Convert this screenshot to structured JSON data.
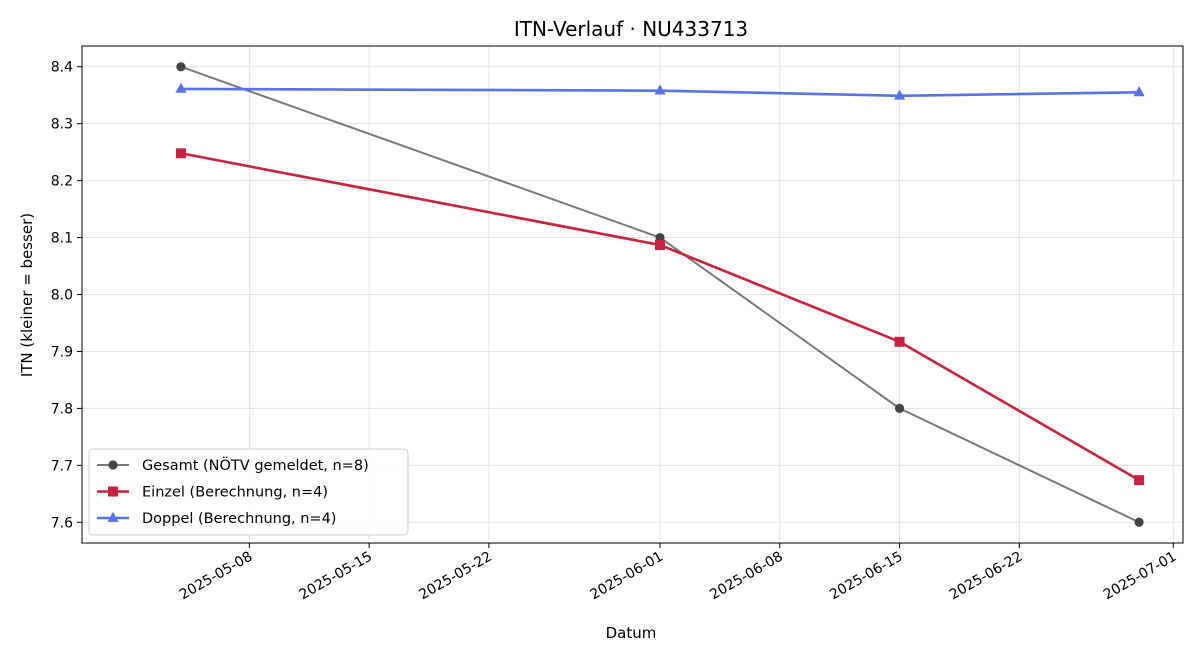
{
  "chart_data": {
    "type": "line",
    "title": "ITN-Verlauf · NU433713",
    "xlabel": "Datum",
    "ylabel": "ITN  (kleiner = besser)",
    "x_type": "date",
    "xlim": [
      "2025-05-01",
      "2025-07-01"
    ],
    "ylim": [
      7.6,
      8.4
    ],
    "x_ticks": [
      "2025-05-08",
      "2025-05-15",
      "2025-05-22",
      "2025-06-01",
      "2025-06-08",
      "2025-06-15",
      "2025-06-22",
      "2025-07-01"
    ],
    "y_ticks": [
      "7.6",
      "7.7",
      "7.8",
      "7.9",
      "8.0",
      "8.1",
      "8.2",
      "8.3",
      "8.4"
    ],
    "grid": true,
    "legend_position": "lower-left",
    "series": [
      {
        "name": "Gesamt (NÖTV gemeldet, n=8)",
        "color": "#444444",
        "marker": "circle",
        "x": [
          "2025-05-04",
          "2025-06-01",
          "2025-06-15",
          "2025-06-29"
        ],
        "y": [
          8.4,
          8.1,
          7.8,
          7.6
        ]
      },
      {
        "name": "Einzel (Berechnung, n=4)",
        "color": "#c8223f",
        "marker": "square",
        "x": [
          "2025-05-04",
          "2025-06-01",
          "2025-06-15",
          "2025-06-29"
        ],
        "y": [
          8.248,
          8.087,
          7.917,
          7.674
        ]
      },
      {
        "name": "Doppel (Berechnung, n=4)",
        "color": "#5672e8",
        "marker": "triangle",
        "x": [
          "2025-05-04",
          "2025-06-01",
          "2025-06-15",
          "2025-06-29"
        ],
        "y": [
          8.361,
          8.358,
          8.349,
          8.355
        ]
      }
    ]
  }
}
